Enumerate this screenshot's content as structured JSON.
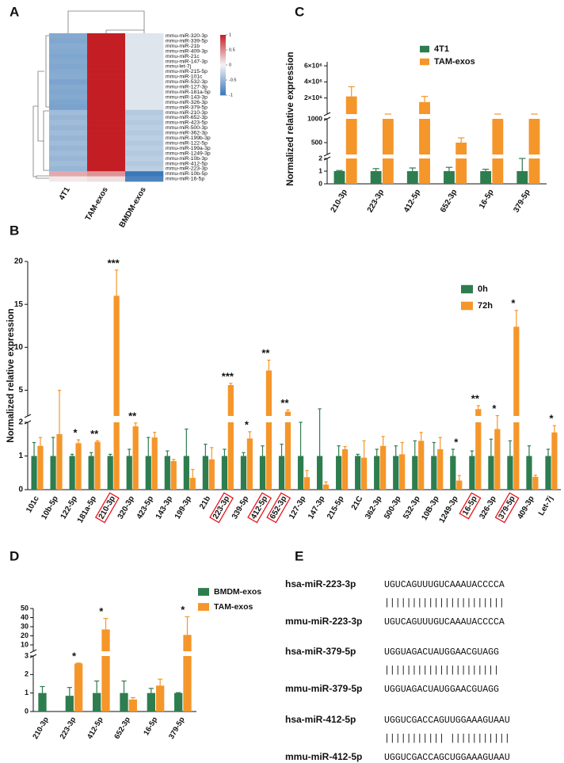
{
  "chart_data": [
    {
      "label": "A",
      "type": "heatmap",
      "rows": [
        "mmu-miR-320-3p",
        "mmu-miR-339-5p",
        "mmu-miR-21b",
        "mmu-miR-409-3p",
        "mmu-miR-21c",
        "mmu-miR-147-3p",
        "mmu-let-7j",
        "mmu-miR-215-5p",
        "mmu-miR-101c",
        "mmu-miR-532-3p",
        "mmu-miR-127-3p",
        "mmu-miR-181a-5p",
        "mmu-miR-143-3p",
        "mmu-miR-326-3p",
        "mmu-miR-379-5p",
        "mmu-miR-210-3p",
        "mmu-miR-652-3p",
        "mmu-miR-423-5p",
        "mmu-miR-500-3p",
        "mmu-miR-362-3p",
        "mmu-miR-199b-3p",
        "mmu-miR-122-5p",
        "mmu-miR-199a-3p",
        "mmu-miR-1249-3p",
        "mmu-miR-10b-3p",
        "mmu-miR-412-5p",
        "mmu-miR-223-3p",
        "mmu-miR-10b-5p",
        "mmu-miR-16-5p"
      ],
      "columns": [
        "4T1",
        "TAM-exos",
        "BMDM-exos"
      ],
      "values": [
        [
          -0.6,
          1,
          -0.12
        ],
        [
          -0.62,
          1,
          -0.12
        ],
        [
          -0.58,
          1,
          -0.12
        ],
        [
          -0.6,
          1,
          -0.12
        ],
        [
          -0.63,
          1,
          -0.12
        ],
        [
          -0.6,
          1,
          -0.12
        ],
        [
          -0.62,
          1,
          -0.12
        ],
        [
          -0.6,
          1,
          -0.12
        ],
        [
          -0.58,
          1,
          -0.12
        ],
        [
          -0.65,
          1,
          -0.12
        ],
        [
          -0.6,
          1,
          -0.12
        ],
        [
          -0.62,
          1,
          -0.12
        ],
        [
          -0.6,
          1,
          -0.12
        ],
        [
          -0.64,
          1,
          -0.12
        ],
        [
          -0.66,
          1,
          -0.12
        ],
        [
          -0.45,
          1,
          -0.35
        ],
        [
          -0.5,
          1,
          -0.3
        ],
        [
          -0.45,
          1,
          -0.35
        ],
        [
          -0.5,
          1,
          -0.3
        ],
        [
          -0.45,
          1,
          -0.35
        ],
        [
          -0.5,
          1,
          -0.3
        ],
        [
          -0.45,
          1,
          -0.35
        ],
        [
          -0.5,
          1,
          -0.3
        ],
        [
          -0.45,
          1,
          -0.35
        ],
        [
          -0.5,
          1,
          -0.3
        ],
        [
          -0.45,
          1,
          -0.35
        ],
        [
          -0.5,
          1,
          -0.3
        ],
        [
          0.35,
          0.45,
          -1
        ],
        [
          0.05,
          0.1,
          -0.9
        ]
      ],
      "colormap": [
        "#3a78b8",
        "#f4f4f4",
        "#c41e25"
      ],
      "colorbar_lim": [
        -1,
        1
      ],
      "colorbar_ticks": [
        1,
        0.5,
        0,
        -0.5,
        -1
      ]
    },
    {
      "label": "B",
      "type": "bar",
      "y_label": "Normalized relative expression",
      "categories": [
        "101c",
        "10b-5p",
        "122-5p",
        "181a-5p",
        "210-3p",
        "320-3p",
        "423-5p",
        "143-3p",
        "199-3p",
        "21b",
        "223-3p",
        "339-5p",
        "412-5p",
        "652-3p",
        "127-3p",
        "147-3p",
        "215-5p",
        "21C",
        "362-3p",
        "500-3p",
        "532-3p",
        "10B-3p",
        "1249-3p",
        "16-5p",
        "326-3p",
        "379-5p",
        "409-3p",
        "Let-7j"
      ],
      "series": [
        {
          "name": "0h",
          "color": "#2e7d4f",
          "values": [
            1,
            1,
            1,
            1,
            1,
            1,
            1,
            1,
            1,
            1,
            1,
            1,
            1,
            1,
            1,
            1,
            1,
            1,
            1,
            1,
            1,
            1,
            1,
            1,
            1,
            1,
            1,
            1
          ],
          "errors": [
            0.4,
            0.55,
            0.05,
            0.1,
            0.05,
            0.2,
            0.55,
            0.15,
            0.8,
            0.35,
            0.2,
            0.1,
            0.3,
            0.35,
            1.0,
            1.4,
            0.3,
            0.05,
            0.2,
            0.3,
            0.45,
            0.4,
            0.2,
            0.15,
            0.5,
            0.45,
            0.3,
            0.2
          ]
        },
        {
          "name": "72h",
          "color": "#f5962a",
          "values": [
            1.3,
            1.65,
            1.38,
            1.42,
            16,
            1.88,
            1.55,
            0.85,
            0.35,
            0.9,
            5.6,
            1.52,
            7.3,
            2.5,
            0.37,
            0.15,
            1.2,
            0.95,
            1.3,
            1.05,
            1.45,
            1.2,
            0.27,
            2.8,
            1.8,
            12.4,
            0.38,
            1.7
          ],
          "errors": [
            0.25,
            1.3,
            0.1,
            0.03,
            3,
            0.1,
            0.15,
            0.05,
            0.25,
            0.35,
            0.2,
            0.2,
            1.2,
            0.2,
            0.2,
            0.08,
            0.08,
            0.5,
            0.28,
            0.35,
            0.25,
            0.35,
            0.15,
            0.4,
            0.4,
            1.9,
            0.05,
            0.2
          ]
        }
      ],
      "y_segments": [
        {
          "ylim": [
            0,
            2
          ],
          "yticks": [
            0,
            1,
            2
          ]
        },
        {
          "ylim": [
            2,
            20
          ],
          "yticks": [
            5,
            10,
            15,
            20
          ]
        }
      ],
      "significance": [
        null,
        null,
        "*",
        "**",
        "***",
        "**",
        null,
        null,
        null,
        null,
        "***",
        "*",
        "**",
        "**",
        null,
        null,
        null,
        null,
        null,
        null,
        null,
        null,
        "*",
        "**",
        "*",
        "*",
        null,
        "*"
      ],
      "highlighted": [
        false,
        false,
        false,
        false,
        true,
        false,
        false,
        false,
        false,
        false,
        true,
        false,
        true,
        true,
        false,
        false,
        false,
        false,
        false,
        false,
        false,
        false,
        false,
        true,
        false,
        true,
        false,
        false
      ],
      "highlight_color": "#e8141b",
      "legend": "upper right"
    },
    {
      "label": "C",
      "type": "bar",
      "y_label": "Normalized relative expression",
      "categories": [
        "210-3p",
        "223-3p",
        "412-5p",
        "652-3p",
        "16-5p",
        "379-5p"
      ],
      "series": [
        {
          "name": "4T1",
          "color": "#2e7d4f",
          "values": [
            1,
            1,
            1,
            1,
            1,
            1
          ],
          "errors": [
            0.05,
            0.2,
            0.25,
            0.3,
            0.15,
            1.0
          ]
        },
        {
          "name": "TAM-exos",
          "color": "#f5962a",
          "values": [
            2200000,
            1050,
            1500000,
            500,
            1050,
            1040
          ],
          "errors": [
            1200000,
            30,
            700000,
            100,
            40,
            30
          ]
        }
      ],
      "y_segments": [
        {
          "ylim": [
            0,
            2
          ],
          "yticks": [
            0,
            1,
            2
          ]
        },
        {
          "ylim": [
            250,
            1000
          ],
          "yticks": [
            500,
            1000
          ]
        },
        {
          "ylim": [
            1000,
            6500000
          ],
          "yticks": [
            {
              "value": 2000000,
              "label": "2×10⁶"
            },
            {
              "value": 4000000,
              "label": "4×10⁶"
            },
            {
              "value": 6000000,
              "label": "6×10⁶"
            }
          ]
        }
      ],
      "legend": "upper left"
    },
    {
      "label": "D",
      "type": "bar",
      "categories": [
        "210-3p",
        "223-3p",
        "412-5p",
        "652-3p",
        "16-5p",
        "379-5p"
      ],
      "series": [
        {
          "name": "BMDM-exos",
          "color": "#2e7d4f",
          "values": [
            1,
            0.85,
            1,
            1,
            1,
            1
          ],
          "errors": [
            0.35,
            0.45,
            0.65,
            0.65,
            0.25,
            0.02
          ]
        },
        {
          "name": "TAM-exos",
          "color": "#f5962a",
          "values": [
            null,
            2.6,
            27,
            0.65,
            1.4,
            21
          ],
          "errors": [
            null,
            0.02,
            12,
            0.1,
            0.35,
            20
          ]
        }
      ],
      "y_segments": [
        {
          "ylim": [
            0,
            3
          ],
          "yticks": [
            0,
            1,
            2,
            3
          ]
        },
        {
          "ylim": [
            3,
            50
          ],
          "yticks": [
            10,
            20,
            30,
            40,
            50
          ]
        }
      ],
      "significance": [
        null,
        "*",
        "*",
        null,
        null,
        "*"
      ],
      "legend": "upper right"
    }
  ],
  "alignment": {
    "label": "E",
    "pairs": [
      {
        "human_name": "hsa-miR-223-3p",
        "human_seq": "UGUCAGUUUGUCAAAUACCCCA",
        "match": "||||||||||||||||||||||",
        "mouse_name": "mmu-miR-223-3p",
        "mouse_seq": "UGUCAGUUUGUCAAAUACCCCA"
      },
      {
        "human_name": "hsa-miR-379-5p",
        "human_seq": "UGGUAGACUAUGGAACGUAGG",
        "match": "|||||||||||||||||||||",
        "mouse_name": "mmu-miR-379-5p",
        "mouse_seq": "UGGUAGACUAUGGAACGUAGG"
      },
      {
        "human_name": "hsa-miR-412-5p",
        "human_seq": "UGGUCGACCAGUUGGAAAGUAAU",
        "match": "||||||||||| |||||||||||",
        "mouse_name": "mmu-miR-412-5p",
        "mouse_seq": "UGGUCGACCAGCUGGAAAGUAAU"
      }
    ]
  }
}
